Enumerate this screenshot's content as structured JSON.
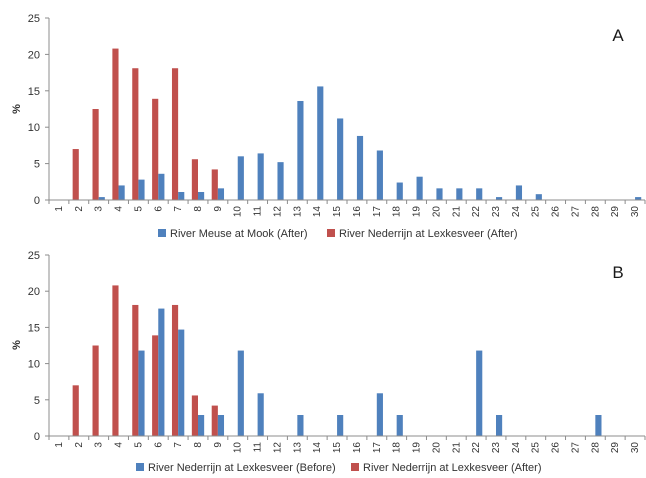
{
  "chart_data": [
    {
      "panel_label": "A",
      "type": "bar",
      "xlabel": "",
      "ylabel": "%",
      "ylim": [
        0,
        25
      ],
      "y_ticks": [
        0,
        5,
        10,
        15,
        20,
        25
      ],
      "categories": [
        "1",
        "2",
        "3",
        "4",
        "5",
        "6",
        "7",
        "8",
        "9",
        "10",
        "11",
        "12",
        "13",
        "14",
        "15",
        "16",
        "17",
        "18",
        "19",
        "20",
        "21",
        "22",
        "23",
        "24",
        "25",
        "26",
        "27",
        "28",
        "29",
        "30"
      ],
      "legend_position": "bottom",
      "grid": false,
      "series": [
        {
          "name": "River Meuse at Mook (After)",
          "color": "#4f81bd",
          "values": [
            0,
            0,
            0.4,
            2,
            2.8,
            3.6,
            1.1,
            1.1,
            1.6,
            6,
            6.4,
            5.2,
            13.6,
            15.6,
            11.2,
            8.8,
            6.8,
            2.4,
            3.2,
            1.6,
            1.6,
            1.6,
            0.4,
            2,
            0.8,
            0,
            0,
            0,
            0,
            0.4
          ]
        },
        {
          "name": "River Nederrijn at Lexkesveer (After)",
          "color": "#c0504d",
          "values": [
            0,
            7,
            12.5,
            20.8,
            18.1,
            13.9,
            18.1,
            5.6,
            4.2,
            0,
            0,
            0,
            0,
            0,
            0,
            0,
            0,
            0,
            0,
            0,
            0,
            0,
            0,
            0,
            0,
            0,
            0,
            0,
            0,
            0
          ]
        }
      ]
    },
    {
      "panel_label": "B",
      "type": "bar",
      "xlabel": "",
      "ylabel": "%",
      "ylim": [
        0,
        25
      ],
      "y_ticks": [
        0,
        5,
        10,
        15,
        20,
        25
      ],
      "categories": [
        "1",
        "2",
        "3",
        "4",
        "5",
        "6",
        "7",
        "8",
        "9",
        "10",
        "11",
        "12",
        "13",
        "14",
        "15",
        "16",
        "17",
        "18",
        "19",
        "20",
        "21",
        "22",
        "23",
        "24",
        "25",
        "26",
        "27",
        "28",
        "29",
        "30"
      ],
      "legend_position": "bottom",
      "grid": false,
      "series": [
        {
          "name": "River Nederrijn at Lexkesveer (Before)",
          "color": "#4f81bd",
          "values": [
            0,
            0,
            0,
            0,
            11.8,
            17.6,
            14.7,
            2.9,
            2.9,
            11.8,
            5.9,
            0,
            2.9,
            0,
            2.9,
            0,
            5.9,
            2.9,
            0,
            0,
            0,
            11.8,
            2.9,
            0,
            0,
            0,
            0,
            2.9,
            0,
            0
          ]
        },
        {
          "name": "River Nederrijn at Lexkesveer (After)",
          "color": "#c0504d",
          "values": [
            0,
            7,
            12.5,
            20.8,
            18.1,
            13.9,
            18.1,
            5.6,
            4.2,
            0,
            0,
            0,
            0,
            0,
            0,
            0,
            0,
            0,
            0,
            0,
            0,
            0,
            0,
            0,
            0,
            0,
            0,
            0,
            0,
            0
          ]
        }
      ]
    }
  ]
}
